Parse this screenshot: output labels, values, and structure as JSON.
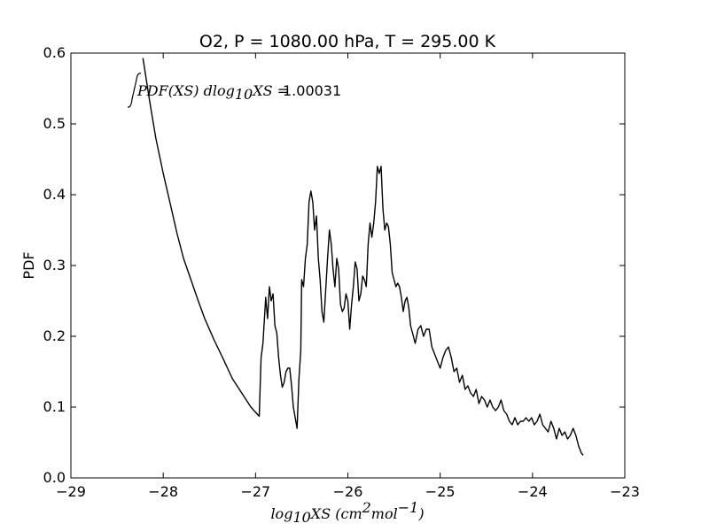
{
  "chart_data": {
    "type": "line",
    "title": "O2, P = 1080.00 hPa, T = 295.00 K",
    "xlabel": "log10XS (cm2mol−1)",
    "ylabel": "PDF",
    "xlim": [
      -29,
      -23
    ],
    "ylim": [
      0,
      0.6
    ],
    "xticks": [
      "−29",
      "−28",
      "−27",
      "−26",
      "−25",
      "−24",
      "−23"
    ],
    "yticks": [
      "0.0",
      "0.1",
      "0.2",
      "0.3",
      "0.4",
      "0.5",
      "0.6"
    ],
    "grid": false,
    "line_color": "#000000",
    "annotation": {
      "integrand": "PDF(XS) dlog10XS =",
      "value": "1.00031"
    },
    "series": [
      {
        "x": [
          -28.22,
          -28.15,
          -28.08,
          -28.0,
          -27.92,
          -27.85,
          -27.78,
          -27.7,
          -27.62,
          -27.55,
          -27.45,
          -27.35,
          -27.25,
          -27.15,
          -27.05,
          -26.96,
          -26.94,
          -26.92,
          -26.89,
          -26.87,
          -26.85,
          -26.83,
          -26.81,
          -26.79,
          -26.77,
          -26.75,
          -26.73,
          -26.71,
          -26.69,
          -26.67,
          -26.65,
          -26.63,
          -26.61,
          -26.59,
          -26.57,
          -26.55,
          -26.53,
          -26.51,
          -26.5,
          -26.48,
          -26.46,
          -26.44,
          -26.42,
          -26.4,
          -26.38,
          -26.36,
          -26.34,
          -26.32,
          -26.3,
          -26.28,
          -26.26,
          -26.24,
          -26.22,
          -26.2,
          -26.18,
          -26.16,
          -26.14,
          -26.12,
          -26.1,
          -26.08,
          -26.06,
          -26.04,
          -26.02,
          -26.0,
          -25.98,
          -25.96,
          -25.94,
          -25.92,
          -25.9,
          -25.88,
          -25.86,
          -25.84,
          -25.82,
          -25.8,
          -25.78,
          -25.76,
          -25.74,
          -25.72,
          -25.7,
          -25.68,
          -25.66,
          -25.64,
          -25.62,
          -25.6,
          -25.58,
          -25.56,
          -25.54,
          -25.52,
          -25.5,
          -25.48,
          -25.46,
          -25.44,
          -25.42,
          -25.4,
          -25.38,
          -25.36,
          -25.34,
          -25.32,
          -25.3,
          -25.27,
          -25.24,
          -25.21,
          -25.18,
          -25.15,
          -25.12,
          -25.09,
          -25.06,
          -25.03,
          -25.0,
          -24.97,
          -24.94,
          -24.91,
          -24.88,
          -24.85,
          -24.82,
          -24.79,
          -24.76,
          -24.73,
          -24.7,
          -24.67,
          -24.64,
          -24.61,
          -24.58,
          -24.55,
          -24.52,
          -24.49,
          -24.46,
          -24.43,
          -24.4,
          -24.37,
          -24.34,
          -24.31,
          -24.28,
          -24.25,
          -24.22,
          -24.19,
          -24.16,
          -24.13,
          -24.1,
          -24.07,
          -24.04,
          -24.01,
          -23.98,
          -23.95,
          -23.92,
          -23.89,
          -23.86,
          -23.83,
          -23.8,
          -23.77,
          -23.74,
          -23.71,
          -23.68,
          -23.65,
          -23.62,
          -23.59,
          -23.56,
          -23.53,
          -23.5,
          -23.47,
          -23.45
        ],
        "y": [
          0.593,
          0.535,
          0.48,
          0.43,
          0.385,
          0.345,
          0.31,
          0.28,
          0.25,
          0.225,
          0.195,
          0.168,
          0.14,
          0.12,
          0.1,
          0.087,
          0.17,
          0.19,
          0.255,
          0.225,
          0.27,
          0.25,
          0.26,
          0.215,
          0.205,
          0.17,
          0.145,
          0.128,
          0.135,
          0.15,
          0.155,
          0.155,
          0.13,
          0.1,
          0.085,
          0.07,
          0.14,
          0.18,
          0.28,
          0.27,
          0.31,
          0.33,
          0.39,
          0.405,
          0.39,
          0.35,
          0.37,
          0.31,
          0.28,
          0.235,
          0.22,
          0.265,
          0.31,
          0.35,
          0.33,
          0.295,
          0.27,
          0.31,
          0.295,
          0.245,
          0.235,
          0.24,
          0.26,
          0.25,
          0.21,
          0.245,
          0.27,
          0.305,
          0.295,
          0.25,
          0.26,
          0.285,
          0.28,
          0.27,
          0.33,
          0.36,
          0.34,
          0.36,
          0.39,
          0.44,
          0.43,
          0.44,
          0.38,
          0.35,
          0.36,
          0.355,
          0.33,
          0.29,
          0.28,
          0.27,
          0.275,
          0.27,
          0.255,
          0.235,
          0.25,
          0.255,
          0.24,
          0.215,
          0.205,
          0.19,
          0.21,
          0.215,
          0.2,
          0.21,
          0.21,
          0.185,
          0.175,
          0.165,
          0.155,
          0.17,
          0.18,
          0.185,
          0.17,
          0.15,
          0.155,
          0.135,
          0.145,
          0.125,
          0.13,
          0.12,
          0.115,
          0.125,
          0.105,
          0.115,
          0.11,
          0.1,
          0.11,
          0.1,
          0.095,
          0.1,
          0.11,
          0.095,
          0.09,
          0.08,
          0.075,
          0.085,
          0.075,
          0.08,
          0.08,
          0.085,
          0.08,
          0.085,
          0.075,
          0.08,
          0.09,
          0.075,
          0.07,
          0.065,
          0.08,
          0.07,
          0.055,
          0.07,
          0.06,
          0.065,
          0.055,
          0.06,
          0.07,
          0.06,
          0.045,
          0.035,
          0.032
        ]
      }
    ]
  }
}
